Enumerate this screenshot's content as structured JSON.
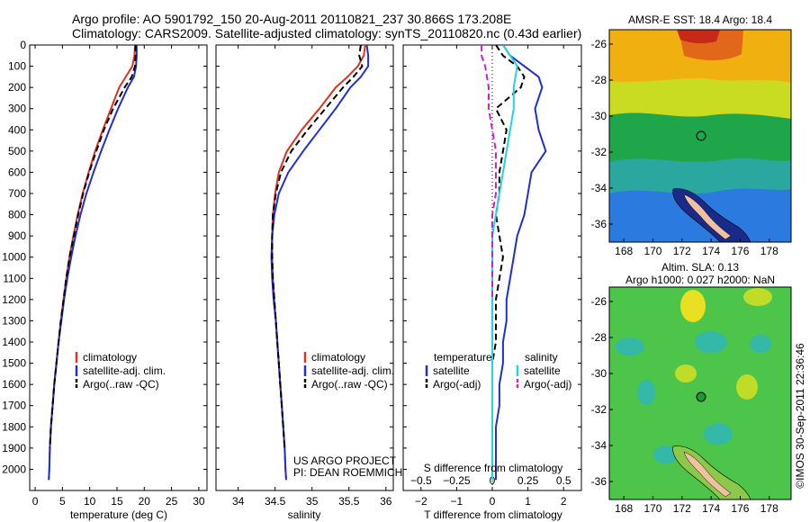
{
  "header": {
    "line1": "Argo profile: AO 5901792_150 20-Aug-2011 20110821_237 30.866S 173.208E",
    "line2": "Climatology: CARS2009. Satellite-adjusted climatology: synTS_20110820.nc (0.43d earlier)"
  },
  "colors": {
    "climatology": "#e0301e",
    "satellite": "#1f2ed6",
    "argo": "#000000",
    "cyan": "#22d4dc",
    "magenta": "#d020c8"
  },
  "chart_data": [
    {
      "id": "temperature",
      "type": "line",
      "xlabel": "temperature (deg C)",
      "ylabel": "",
      "xlim": [
        -1,
        31.5
      ],
      "ylim": [
        2100,
        0
      ],
      "xticks": [
        0,
        5,
        10,
        15,
        20,
        25,
        30
      ],
      "yticks": [
        0,
        100,
        200,
        300,
        400,
        500,
        600,
        700,
        800,
        900,
        1000,
        1100,
        1200,
        1300,
        1400,
        1500,
        1600,
        1700,
        1800,
        1900,
        2000
      ],
      "legend": [
        "climatology",
        "satellite-adj. clim.",
        "Argo(..raw -QC)"
      ],
      "series": [
        {
          "name": "climatology",
          "style": "solid",
          "color": "#e0301e",
          "x": [
            18.3,
            18.2,
            17.8,
            16.6,
            15.4,
            13.9,
            12.4,
            11.0,
            9.8,
            8.7,
            7.8,
            7.0,
            6.3,
            5.7,
            5.2,
            4.7,
            4.3,
            3.9,
            3.5,
            3.2,
            2.9,
            2.7,
            2.6,
            2.5
          ],
          "y": [
            0,
            50,
            100,
            150,
            200,
            300,
            400,
            500,
            600,
            700,
            800,
            900,
            1000,
            1100,
            1200,
            1300,
            1400,
            1500,
            1600,
            1700,
            1800,
            1900,
            2000,
            2050
          ]
        },
        {
          "name": "satellite-adj. clim.",
          "style": "solid",
          "color": "#1f2ed6",
          "x": [
            18.6,
            18.6,
            18.5,
            18.1,
            17.0,
            15.2,
            13.6,
            12.1,
            10.7,
            9.4,
            8.3,
            7.4,
            6.6,
            5.9,
            5.3,
            4.8,
            4.3,
            3.9,
            3.5,
            3.2,
            2.9,
            2.7,
            2.6,
            2.5
          ],
          "y": [
            0,
            50,
            100,
            150,
            200,
            300,
            400,
            500,
            600,
            700,
            800,
            900,
            1000,
            1100,
            1200,
            1300,
            1400,
            1500,
            1600,
            1700,
            1800,
            1900,
            2000,
            2050
          ]
        },
        {
          "name": "Argo(..raw -QC)",
          "style": "dashed",
          "color": "#000000",
          "x": [
            18.4,
            18.4,
            18.3,
            17.7,
            16.4,
            14.3,
            12.6,
            11.2,
            9.9,
            8.8,
            7.9,
            7.1,
            6.3,
            5.7,
            5.2,
            4.7,
            4.3,
            3.9,
            3.5,
            3.2,
            2.9,
            2.7
          ],
          "y": [
            0,
            50,
            100,
            150,
            200,
            300,
            400,
            500,
            600,
            700,
            800,
            900,
            1000,
            1100,
            1200,
            1300,
            1400,
            1500,
            1600,
            1700,
            1800,
            1900
          ]
        }
      ]
    },
    {
      "id": "salinity",
      "type": "line",
      "xlabel": "salinity",
      "ylabel": "",
      "xlim": [
        33.7,
        36.1
      ],
      "ylim": [
        2100,
        0
      ],
      "xticks": [
        34,
        34.5,
        35,
        35.5,
        36
      ],
      "legend": [
        "climatology",
        "satellite-adj. clim.",
        "Argo(..raw -QC)"
      ],
      "annotation": [
        "US ARGO PROJECT",
        "PI: DEAN ROEMMICH"
      ],
      "series": [
        {
          "name": "climatology",
          "style": "solid",
          "color": "#e0301e",
          "x": [
            35.72,
            35.7,
            35.62,
            35.48,
            35.32,
            35.1,
            34.86,
            34.66,
            34.55,
            34.5,
            34.47,
            34.46,
            34.46,
            34.47,
            34.49,
            34.51,
            34.53,
            34.55,
            34.57,
            34.59,
            34.61,
            34.63,
            34.64,
            34.65
          ],
          "y": [
            0,
            50,
            100,
            150,
            200,
            300,
            400,
            500,
            600,
            700,
            800,
            900,
            1000,
            1100,
            1200,
            1300,
            1400,
            1500,
            1600,
            1700,
            1800,
            1900,
            2000,
            2050
          ]
        },
        {
          "name": "satellite-adj. clim.",
          "style": "solid",
          "color": "#1f2ed6",
          "x": [
            35.74,
            35.76,
            35.76,
            35.66,
            35.52,
            35.32,
            35.1,
            34.88,
            34.68,
            34.55,
            34.49,
            34.46,
            34.45,
            34.46,
            34.48,
            34.51,
            34.53,
            34.55,
            34.57,
            34.59,
            34.61,
            34.63,
            34.64,
            34.65
          ],
          "y": [
            0,
            50,
            100,
            150,
            200,
            300,
            400,
            500,
            600,
            700,
            800,
            900,
            1000,
            1100,
            1200,
            1300,
            1400,
            1500,
            1600,
            1700,
            1800,
            1900,
            2000,
            2050
          ]
        },
        {
          "name": "Argo(..raw -QC)",
          "style": "dashed",
          "color": "#000000",
          "x": [
            35.66,
            35.64,
            35.68,
            35.56,
            35.42,
            35.18,
            34.94,
            34.72,
            34.58,
            34.51,
            34.47,
            34.46,
            34.46,
            34.47,
            34.49,
            34.51,
            34.53,
            34.55,
            34.57,
            34.59,
            34.61,
            34.63
          ],
          "y": [
            0,
            50,
            100,
            150,
            200,
            300,
            400,
            500,
            600,
            700,
            800,
            900,
            1000,
            1100,
            1200,
            1300,
            1400,
            1500,
            1600,
            1700,
            1800,
            1900
          ]
        }
      ]
    },
    {
      "id": "difference",
      "type": "line",
      "xlabel": "T difference from climatology",
      "xlabel_top": "S difference from climatology",
      "ylabel": "",
      "xlim": [
        -2.5,
        2.5
      ],
      "ylim": [
        2100,
        0
      ],
      "xticks": [
        -2,
        -1,
        0,
        1,
        2
      ],
      "xticklabels": [
        "−2",
        "−1",
        "0",
        "1",
        "2"
      ],
      "xticks2": [
        -2,
        -1,
        0,
        1,
        2
      ],
      "xticklabels2": [
        "−0.5",
        "−0.25",
        "0",
        "0.25",
        "0.5"
      ],
      "legend_left_title": "temperature",
      "legend_right_title": "salinity",
      "legend": [
        "satellite",
        "Argo(-adj)",
        "satellite",
        "Argo(-adj)"
      ],
      "series": [
        {
          "name": "T satellite",
          "style": "solid",
          "color": "#1f2ed6",
          "x": [
            0.3,
            0.5,
            0.9,
            1.3,
            1.4,
            1.2,
            1.3,
            1.5,
            1.1,
            1.0,
            0.9,
            0.7,
            0.6,
            0.5,
            0.4,
            0.4,
            0.3,
            0.3,
            0.2,
            0.2,
            0.1,
            0.1
          ],
          "y": [
            0,
            50,
            100,
            150,
            200,
            300,
            400,
            500,
            600,
            700,
            800,
            900,
            1000,
            1100,
            1200,
            1300,
            1400,
            1500,
            1600,
            1700,
            1800,
            2050
          ]
        },
        {
          "name": "T Argo(-adj)",
          "style": "dashed",
          "color": "#000000",
          "x": [
            0.1,
            0.3,
            0.7,
            0.9,
            0.8,
            0.1,
            0.4,
            0.3,
            0.2,
            0.2,
            0.1,
            0.2,
            0.3,
            0.2,
            0.1,
            0.1,
            0.1,
            0.0,
            0.0,
            0.0,
            0.0
          ],
          "y": [
            0,
            50,
            100,
            150,
            200,
            300,
            400,
            500,
            600,
            700,
            800,
            900,
            1000,
            1100,
            1200,
            1300,
            1400,
            1500,
            1600,
            1700,
            1800
          ]
        },
        {
          "name": "S satellite",
          "style": "solid",
          "color": "#22d4dc",
          "x": [
            0.3,
            0.5,
            0.7,
            0.6,
            0.6,
            0.5,
            0.4,
            0.3,
            0.2,
            0.1,
            0.0,
            0.0,
            0.0,
            0.0,
            0.0,
            0.0,
            0.0,
            0.0,
            0.0
          ],
          "y": [
            0,
            50,
            100,
            200,
            300,
            400,
            500,
            600,
            700,
            800,
            900,
            1000,
            1100,
            1200,
            1300,
            1400,
            1500,
            1800,
            2050
          ]
        },
        {
          "name": "S Argo(-adj)",
          "style": "dashed",
          "color": "#d020c8",
          "x": [
            -0.3,
            -0.3,
            -0.2,
            -0.1,
            -0.1,
            0.0,
            0.1,
            0.1,
            0.1,
            0.0,
            0.0,
            0.0,
            0.0,
            0.0
          ],
          "y": [
            0,
            50,
            100,
            200,
            300,
            400,
            500,
            600,
            700,
            800,
            900,
            1000,
            1100,
            1200
          ]
        }
      ]
    }
  ],
  "maps": {
    "top": {
      "title": "AMSR-E SST: 18.4  Argo: 18.4",
      "xticks": [
        168,
        170,
        172,
        174,
        176,
        178
      ],
      "yticks": [
        -26,
        -28,
        -30,
        -32,
        -34,
        -36
      ],
      "xlim": [
        167,
        179.5
      ],
      "ylim": [
        -37,
        -25.2
      ],
      "marker": [
        173.2,
        -30.87
      ]
    },
    "bottom": {
      "title1": "Altim. SLA: 0.13",
      "title2": "Argo h1000: 0.027 h2000: NaN",
      "xticks": [
        168,
        170,
        172,
        174,
        176,
        178
      ],
      "yticks": [
        -26,
        -28,
        -30,
        -32,
        -34,
        -36
      ],
      "xlim": [
        167,
        179.5
      ],
      "ylim": [
        -37,
        -25.2
      ],
      "marker": [
        173.2,
        -30.87
      ]
    }
  },
  "footer": {
    "credit": "©IMOS 30-Sep-2011 22:36:46"
  }
}
